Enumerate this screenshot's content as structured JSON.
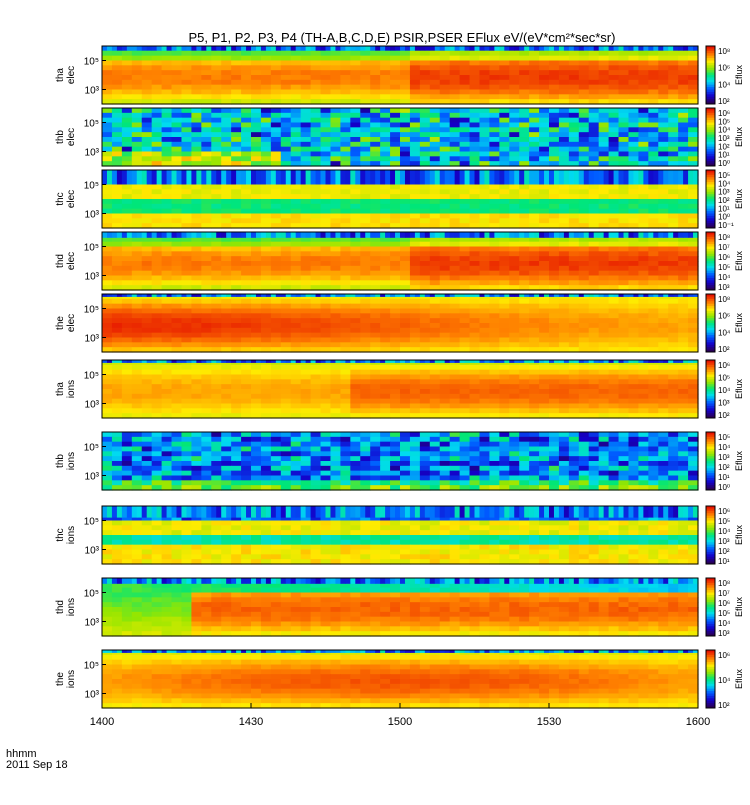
{
  "chart_data": {
    "type": "heatmap",
    "title": "P5, P1, P2, P3, P4  (TH-A,B,C,D,E)  PSIR,PSER EFlux eV/(eV*cm²*sec*sr)",
    "xlabel": "hhmm",
    "date_label": "2011 Sep 18",
    "x_ticks": [
      "1400",
      "1430",
      "1500",
      "1530",
      "1600"
    ],
    "colorbar_label": "Eflux",
    "colormap": "rainbow",
    "panels": [
      {
        "ylabel": [
          "tha",
          "elec"
        ],
        "yticks": [
          "10⁵",
          "10³"
        ],
        "cbar_ticks": [
          "10⁸",
          "10⁶",
          "10⁴",
          "10²"
        ],
        "profile": "warm",
        "noise": 0.15,
        "topband": 0.08,
        "gap": 0
      },
      {
        "ylabel": [
          "thb",
          "elec"
        ],
        "yticks": [
          "10⁵",
          "10³"
        ],
        "cbar_ticks": [
          "10⁶",
          "10⁵",
          "10⁴",
          "10³",
          "10²",
          "10¹",
          "10⁰"
        ],
        "profile": "noisy",
        "noise": 0.9,
        "topband": 0.0,
        "gap": 0
      },
      {
        "ylabel": [
          "thc",
          "elec"
        ],
        "yticks": [
          "10⁵",
          "10³"
        ],
        "cbar_ticks": [
          "10⁵",
          "10⁴",
          "10³",
          "10²",
          "10¹",
          "10⁰",
          "10⁻¹"
        ],
        "profile": "bands",
        "noise": 0.2,
        "topband": 0.25,
        "gap": 0
      },
      {
        "ylabel": [
          "thd",
          "elec"
        ],
        "yticks": [
          "10⁵",
          "10³"
        ],
        "cbar_ticks": [
          "10⁸",
          "10⁷",
          "10⁶",
          "10⁵",
          "10⁴",
          "10³"
        ],
        "profile": "warm",
        "noise": 0.15,
        "topband": 0.1,
        "gap": 0
      },
      {
        "ylabel": [
          "the",
          "elec"
        ],
        "yticks": [
          "10⁵",
          "10³"
        ],
        "cbar_ticks": [
          "10⁸",
          "10⁶",
          "10⁴",
          "10²"
        ],
        "profile": "hot",
        "noise": 0.1,
        "topband": 0.05,
        "gap": 0
      },
      {
        "ylabel": [
          "tha",
          "ions"
        ],
        "yticks": [
          "10⁵",
          "10³"
        ],
        "cbar_ticks": [
          "10⁶",
          "10⁵",
          "10⁴",
          "10³",
          "10²"
        ],
        "profile": "ions",
        "noise": 0.1,
        "topband": 0.05,
        "gap": 1
      },
      {
        "ylabel": [
          "thb",
          "ions"
        ],
        "yticks": [
          "10⁵",
          "10³"
        ],
        "cbar_ticks": [
          "10⁵",
          "10⁴",
          "10³",
          "10²",
          "10¹",
          "10⁰"
        ],
        "profile": "noisy2",
        "noise": 0.8,
        "topband": 0.0,
        "gap": 1
      },
      {
        "ylabel": [
          "thc",
          "ions"
        ],
        "yticks": [
          "10⁵",
          "10³"
        ],
        "cbar_ticks": [
          "10⁶",
          "10⁵",
          "10⁴",
          "10³",
          "10²",
          "10¹"
        ],
        "profile": "bands2",
        "noise": 0.3,
        "topband": 0.2,
        "gap": 1
      },
      {
        "ylabel": [
          "thd",
          "ions"
        ],
        "yticks": [
          "10⁵",
          "10³"
        ],
        "cbar_ticks": [
          "10⁸",
          "10⁷",
          "10⁶",
          "10⁵",
          "10⁴",
          "10³"
        ],
        "profile": "ions2",
        "noise": 0.15,
        "topband": 0.1,
        "gap": 1
      },
      {
        "ylabel": [
          "the",
          "ions"
        ],
        "yticks": [
          "10⁵",
          "10³"
        ],
        "cbar_ticks": [
          "10⁶",
          "10⁴",
          "10²"
        ],
        "profile": "ions3",
        "noise": 0.1,
        "topband": 0.05,
        "gap": 1
      }
    ]
  }
}
